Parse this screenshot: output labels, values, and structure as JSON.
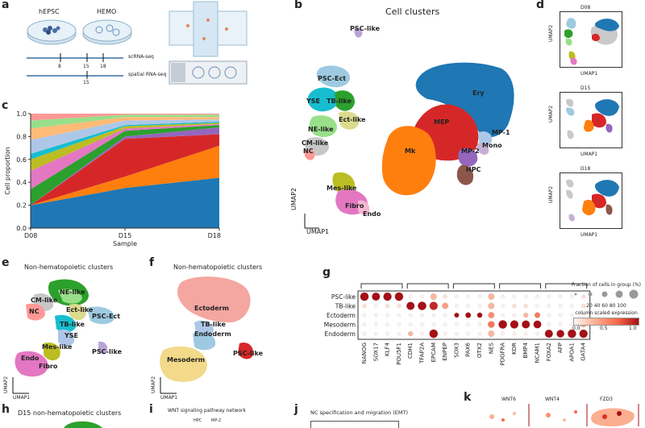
{
  "panels": {
    "a": {
      "label": "a",
      "dish1": "hEPSC",
      "dish2": "HEMO",
      "track1": "scRNA-seq",
      "track2": "spatial RNA-seq",
      "ticks1": [
        "8",
        "15",
        "18"
      ],
      "ticks2": [
        "15"
      ]
    },
    "b": {
      "label": "b",
      "title": "Cell clusters",
      "xlabel": "UMAP1",
      "ylabel": "UMAP2",
      "clusters": [
        {
          "name": "PSC-like",
          "color": "#b9a4d6"
        },
        {
          "name": "PSC-Ect",
          "color": "#9ecae1"
        },
        {
          "name": "YSE",
          "color": "#17becf"
        },
        {
          "name": "TB-like",
          "color": "#2ca02c"
        },
        {
          "name": "Ect-like",
          "color": "#dbdb8d"
        },
        {
          "name": "NE-like",
          "color": "#98df8a"
        },
        {
          "name": "CM-like",
          "color": "#c7c7c7"
        },
        {
          "name": "NC",
          "color": "#ff9896"
        },
        {
          "name": "Mes-like",
          "color": "#bcbd22"
        },
        {
          "name": "Fibro",
          "color": "#e377c2"
        },
        {
          "name": "Endo",
          "color": "#f7b6d2"
        },
        {
          "name": "Ery",
          "color": "#1f77b4"
        },
        {
          "name": "MEP",
          "color": "#d62728"
        },
        {
          "name": "Mk",
          "color": "#ff7f0e"
        },
        {
          "name": "MP-1",
          "color": "#aec7e8"
        },
        {
          "name": "MP-2",
          "color": "#9467bd"
        },
        {
          "name": "Mono",
          "color": "#c5b0d5"
        },
        {
          "name": "HPC",
          "color": "#8c564b"
        }
      ]
    },
    "c": {
      "label": "c",
      "xlabel": "Sample",
      "ylabel": "Cell proportion"
    },
    "d": {
      "label": "d",
      "minis": [
        {
          "title": "D08",
          "xlabel": "UMAP1",
          "ylabel": "UMAP2"
        },
        {
          "title": "D15",
          "xlabel": "UMAP1",
          "ylabel": "UMAP2"
        },
        {
          "title": "D18",
          "xlabel": "UMAP1",
          "ylabel": "UMAP2"
        }
      ]
    },
    "e": {
      "label": "e",
      "title": "Non-hematopoietic clusters",
      "xlabel": "UMAP1",
      "ylabel": "UMAP2",
      "names": [
        "NE-like",
        "CM-like",
        "NC",
        "Ect-like",
        "PSC-Ect",
        "TB-like",
        "YSE",
        "Mes-like",
        "PSC-like",
        "Endo",
        "Fibro"
      ]
    },
    "f": {
      "label": "f",
      "title": "Non-hematopoietic clusters",
      "xlabel": "UMAP1",
      "ylabel": "UMAP2",
      "names": [
        "Ectoderm",
        "TB-like",
        "Endoderm",
        "Mesoderm",
        "PSC-like"
      ]
    },
    "g": {
      "label": "g",
      "legend_title": "Fraction of cells in group (%)",
      "size_ticks": "20 40 60 80 100",
      "color_title": "column scaled expression",
      "color_ticks": [
        "0.0",
        "0.5",
        "1.0"
      ]
    },
    "h": {
      "label": "h",
      "title": "D15 non-hematopoietic clusters"
    },
    "i": {
      "label": "i",
      "title": "WNT signaling pathway network",
      "nodes": [
        "HPC",
        "MP-2"
      ]
    },
    "j": {
      "label": "j",
      "title": "NC specification and migration (EMT)"
    },
    "k": {
      "label": "k",
      "genes": [
        "WNT6",
        "WNT4",
        "FZD3"
      ]
    }
  },
  "chart_data": [
    {
      "panel": "c",
      "type": "area",
      "categories": [
        "D08",
        "D15",
        "D18"
      ],
      "ylim": [
        0,
        1.0
      ],
      "yticks": [
        "0.0",
        "0.2",
        "0.4",
        "0.6",
        "0.8",
        "1.0"
      ],
      "xlabel": "Sample",
      "ylabel": "Cell proportion",
      "series": [
        {
          "color": "#1f77b4",
          "values": [
            0.2,
            0.35,
            0.44
          ]
        },
        {
          "color": "#ff7f0e",
          "values": [
            0.0,
            0.1,
            0.28
          ]
        },
        {
          "color": "#d62728",
          "values": [
            0.0,
            0.33,
            0.1
          ]
        },
        {
          "color": "#9467bd",
          "values": [
            0.0,
            0.02,
            0.06
          ]
        },
        {
          "color": "#2ca02c",
          "values": [
            0.14,
            0.05,
            0.02
          ]
        },
        {
          "color": "#e377c2",
          "values": [
            0.16,
            0.02,
            0.01
          ]
        },
        {
          "color": "#bcbd22",
          "values": [
            0.1,
            0.02,
            0.01
          ]
        },
        {
          "color": "#17becf",
          "values": [
            0.05,
            0.01,
            0.01
          ]
        },
        {
          "color": "#aec7e8",
          "values": [
            0.12,
            0.04,
            0.02
          ]
        },
        {
          "color": "#ffbb78",
          "values": [
            0.1,
            0.03,
            0.02
          ]
        },
        {
          "color": "#98df8a",
          "values": [
            0.07,
            0.02,
            0.02
          ]
        },
        {
          "color": "#ff9896",
          "values": [
            0.06,
            0.01,
            0.01
          ]
        }
      ]
    },
    {
      "panel": "g",
      "type": "scatter",
      "rows": [
        "PSC-like",
        "TB-like",
        "Ectoderm",
        "Mesoderm",
        "Endoderm"
      ],
      "columns": [
        "NANOG",
        "SOX17",
        "KLF4",
        "POU5F1",
        "CDH1",
        "TFAP2A",
        "EPCAM",
        "ENPEP",
        "SOX3",
        "PAX6",
        "OTX2",
        "NES",
        "PDGFRA",
        "KDR",
        "BMP4",
        "NCAM1",
        "FOXA2",
        "AFP",
        "APOA1",
        "GATA4"
      ],
      "groups": [
        [
          0,
          3
        ],
        [
          4,
          7
        ],
        [
          8,
          11
        ],
        [
          12,
          15
        ],
        [
          16,
          19
        ]
      ],
      "size": [
        [
          90,
          80,
          85,
          90,
          5,
          5,
          40,
          10,
          5,
          5,
          5,
          40,
          5,
          5,
          5,
          5,
          5,
          5,
          5,
          10
        ],
        [
          10,
          5,
          10,
          10,
          80,
          90,
          85,
          40,
          5,
          5,
          5,
          40,
          5,
          10,
          10,
          5,
          5,
          5,
          5,
          10
        ],
        [
          5,
          5,
          5,
          5,
          5,
          5,
          5,
          5,
          20,
          30,
          25,
          40,
          5,
          5,
          20,
          30,
          5,
          5,
          5,
          5
        ],
        [
          5,
          5,
          5,
          5,
          5,
          5,
          5,
          5,
          5,
          5,
          5,
          50,
          90,
          85,
          80,
          75,
          5,
          5,
          5,
          30
        ],
        [
          5,
          5,
          5,
          5,
          20,
          5,
          90,
          5,
          5,
          5,
          5,
          40,
          5,
          5,
          5,
          5,
          80,
          70,
          90,
          85
        ]
      ],
      "color": [
        [
          1.0,
          1.0,
          1.0,
          1.0,
          0.0,
          0.0,
          0.3,
          0.1,
          0.0,
          0.0,
          0.0,
          0.3,
          0.0,
          0.0,
          0.0,
          0.0,
          0.0,
          0.0,
          0.0,
          0.1
        ],
        [
          0.1,
          0.0,
          0.1,
          0.1,
          1.0,
          1.0,
          0.9,
          0.4,
          0.0,
          0.0,
          0.0,
          0.3,
          0.0,
          0.1,
          0.1,
          0.0,
          0.0,
          0.0,
          0.0,
          0.1
        ],
        [
          0.0,
          0.0,
          0.0,
          0.0,
          0.0,
          0.0,
          0.0,
          0.0,
          1.0,
          1.0,
          1.0,
          0.5,
          0.0,
          0.0,
          0.3,
          0.6,
          0.0,
          0.0,
          0.0,
          0.0
        ],
        [
          0.0,
          0.0,
          0.0,
          0.0,
          0.0,
          0.0,
          0.0,
          0.0,
          0.0,
          0.0,
          0.0,
          0.6,
          1.0,
          1.0,
          1.0,
          1.0,
          0.0,
          0.0,
          0.0,
          0.4
        ],
        [
          0.0,
          0.0,
          0.0,
          0.0,
          0.3,
          0.0,
          1.0,
          0.0,
          0.0,
          0.0,
          0.0,
          0.3,
          0.0,
          0.0,
          0.0,
          0.0,
          1.0,
          1.0,
          1.0,
          1.0
        ]
      ]
    }
  ]
}
